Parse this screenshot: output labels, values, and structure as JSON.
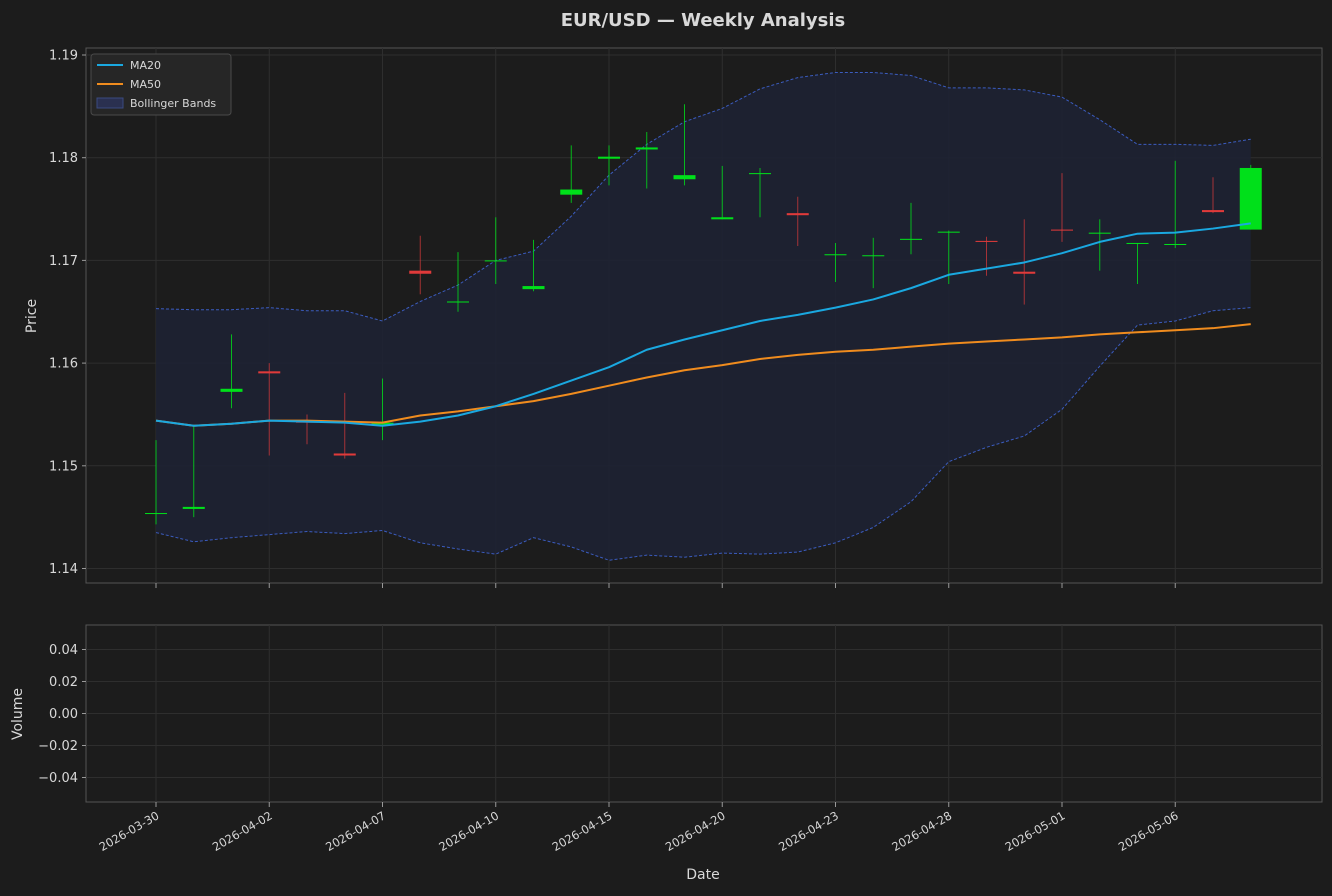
{
  "title": "EUR/USD — Weekly Analysis",
  "colors": {
    "background": "#1c1c1c",
    "panel": "#1c1c1c",
    "grid": "#2e2e2e",
    "axis_text": "#d8d8d8",
    "up": "#00e01a",
    "down": "#e03a3a",
    "ma20": "#1aa8e0",
    "ma50": "#f08c1e",
    "band_fill": "#1e2233",
    "band_line": "#3b5cbf"
  },
  "chart_data": [
    {
      "type": "candlestick",
      "title": "EUR/USD — Weekly Analysis",
      "ylabel": "Price",
      "ylim": [
        1.1385,
        1.1908
      ],
      "yticks": [
        "1.14",
        "1.15",
        "1.16",
        "1.17",
        "1.18",
        "1.19"
      ],
      "grid": true,
      "legend_position": "top-left",
      "legend": [
        "MA20",
        "MA50",
        "Bollinger Bands"
      ],
      "dates": [
        "2026-03-30",
        "2026-03-31",
        "2026-04-01",
        "2026-04-02",
        "2026-04-03",
        "2026-04-06",
        "2026-04-07",
        "2026-04-08",
        "2026-04-09",
        "2026-04-10",
        "2026-04-13",
        "2026-04-14",
        "2026-04-15",
        "2026-04-16",
        "2026-04-17",
        "2026-04-20",
        "2026-04-21",
        "2026-04-22",
        "2026-04-23",
        "2026-04-24",
        "2026-04-27",
        "2026-04-28",
        "2026-04-29",
        "2026-04-30",
        "2026-05-01",
        "2026-05-04",
        "2026-05-05",
        "2026-05-06",
        "2026-05-07",
        "2026-05-08"
      ],
      "x_tick_labels": [
        "2026-03-30",
        "2026-04-02",
        "2026-04-07",
        "2026-04-10",
        "2026-04-15",
        "2026-04-20",
        "2026-04-23",
        "2026-04-28",
        "2026-05-01",
        "2026-05-06"
      ],
      "candles": [
        {
          "open": 1.1454,
          "high": 1.1525,
          "low": 1.1443,
          "close": 1.1454
        },
        {
          "open": 1.1458,
          "high": 1.1538,
          "low": 1.145,
          "close": 1.146
        },
        {
          "open": 1.1572,
          "high": 1.1628,
          "low": 1.1556,
          "close": 1.1575
        },
        {
          "open": 1.1592,
          "high": 1.16,
          "low": 1.151,
          "close": 1.159
        },
        {
          "open": 1.1544,
          "high": 1.155,
          "low": 1.1521,
          "close": 1.1542
        },
        {
          "open": 1.1512,
          "high": 1.1571,
          "low": 1.1507,
          "close": 1.151
        },
        {
          "open": 1.154,
          "high": 1.1585,
          "low": 1.1525,
          "close": 1.1542
        },
        {
          "open": 1.169,
          "high": 1.1724,
          "low": 1.1667,
          "close": 1.1687
        },
        {
          "open": 1.1659,
          "high": 1.1708,
          "low": 1.165,
          "close": 1.166
        },
        {
          "open": 1.17,
          "high": 1.1742,
          "low": 1.1677,
          "close": 1.17
        },
        {
          "open": 1.1672,
          "high": 1.172,
          "low": 1.167,
          "close": 1.1675
        },
        {
          "open": 1.1764,
          "high": 1.1812,
          "low": 1.1756,
          "close": 1.1769
        },
        {
          "open": 1.1799,
          "high": 1.1812,
          "low": 1.1773,
          "close": 1.1801
        },
        {
          "open": 1.1808,
          "high": 1.1825,
          "low": 1.177,
          "close": 1.181
        },
        {
          "open": 1.1779,
          "high": 1.1852,
          "low": 1.1773,
          "close": 1.1783
        },
        {
          "open": 1.174,
          "high": 1.1792,
          "low": 1.174,
          "close": 1.1742
        },
        {
          "open": 1.1784,
          "high": 1.179,
          "low": 1.1742,
          "close": 1.1785
        },
        {
          "open": 1.1746,
          "high": 1.1762,
          "low": 1.1714,
          "close": 1.1744
        },
        {
          "open": 1.1705,
          "high": 1.1717,
          "low": 1.1679,
          "close": 1.1706
        },
        {
          "open": 1.1705,
          "high": 1.1722,
          "low": 1.1673,
          "close": 1.1705
        },
        {
          "open": 1.172,
          "high": 1.1756,
          "low": 1.1706,
          "close": 1.1721
        },
        {
          "open": 1.1727,
          "high": 1.1729,
          "low": 1.1677,
          "close": 1.1728
        },
        {
          "open": 1.1719,
          "high": 1.1723,
          "low": 1.1685,
          "close": 1.1718
        },
        {
          "open": 1.1689,
          "high": 1.174,
          "low": 1.1657,
          "close": 1.1687
        },
        {
          "open": 1.173,
          "high": 1.1785,
          "low": 1.1718,
          "close": 1.1729
        },
        {
          "open": 1.1726,
          "high": 1.174,
          "low": 1.169,
          "close": 1.1727
        },
        {
          "open": 1.1716,
          "high": 1.1717,
          "low": 1.1677,
          "close": 1.1717
        },
        {
          "open": 1.1715,
          "high": 1.1797,
          "low": 1.1712,
          "close": 1.1716
        },
        {
          "open": 1.1749,
          "high": 1.1781,
          "low": 1.1746,
          "close": 1.1747
        },
        {
          "open": 1.173,
          "high": 1.1793,
          "low": 1.173,
          "close": 1.179
        }
      ],
      "series": [
        {
          "name": "MA20",
          "values": [
            1.1544,
            1.1539,
            1.1541,
            1.1544,
            1.1543,
            1.1542,
            1.1539,
            1.1543,
            1.1549,
            1.1558,
            1.157,
            1.1583,
            1.1596,
            1.1613,
            1.1623,
            1.1632,
            1.1641,
            1.1647,
            1.1654,
            1.1662,
            1.1673,
            1.1686,
            1.1692,
            1.1698,
            1.1707,
            1.1718,
            1.1726,
            1.1727,
            1.1731,
            1.1736
          ]
        },
        {
          "name": "MA50",
          "values": [
            1.1544,
            1.1539,
            1.1541,
            1.1544,
            1.1544,
            1.1543,
            1.1542,
            1.1549,
            1.1553,
            1.1558,
            1.1563,
            1.157,
            1.1578,
            1.1586,
            1.1593,
            1.1598,
            1.1604,
            1.1608,
            1.1611,
            1.1613,
            1.1616,
            1.1619,
            1.1621,
            1.1623,
            1.1625,
            1.1628,
            1.163,
            1.1632,
            1.1634,
            1.1638
          ]
        },
        {
          "name": "Bollinger Bands",
          "upper": [
            1.1653,
            1.1652,
            1.1652,
            1.1654,
            1.1651,
            1.1651,
            1.1641,
            1.166,
            1.1676,
            1.17,
            1.1709,
            1.1743,
            1.1783,
            1.1813,
            1.1835,
            1.1848,
            1.1867,
            1.1878,
            1.1883,
            1.1883,
            1.188,
            1.1868,
            1.1868,
            1.1866,
            1.1859,
            1.1837,
            1.1813,
            1.1813,
            1.1812,
            1.1818
          ],
          "lower": [
            1.1435,
            1.1426,
            1.143,
            1.1433,
            1.1436,
            1.1434,
            1.1437,
            1.1425,
            1.1419,
            1.1414,
            1.143,
            1.1421,
            1.1408,
            1.1413,
            1.1411,
            1.1415,
            1.1414,
            1.1416,
            1.1425,
            1.144,
            1.1465,
            1.1504,
            1.1518,
            1.1529,
            1.1555,
            1.1597,
            1.1637,
            1.1641,
            1.1651,
            1.1654
          ]
        }
      ]
    },
    {
      "type": "bar",
      "ylabel": "Volume",
      "xlabel": "Date",
      "ylim": [
        -0.055,
        0.055
      ],
      "yticks": [
        "0.04",
        "0.02",
        "0.00",
        "−0.02",
        "−0.04"
      ],
      "grid": true,
      "values": []
    }
  ]
}
